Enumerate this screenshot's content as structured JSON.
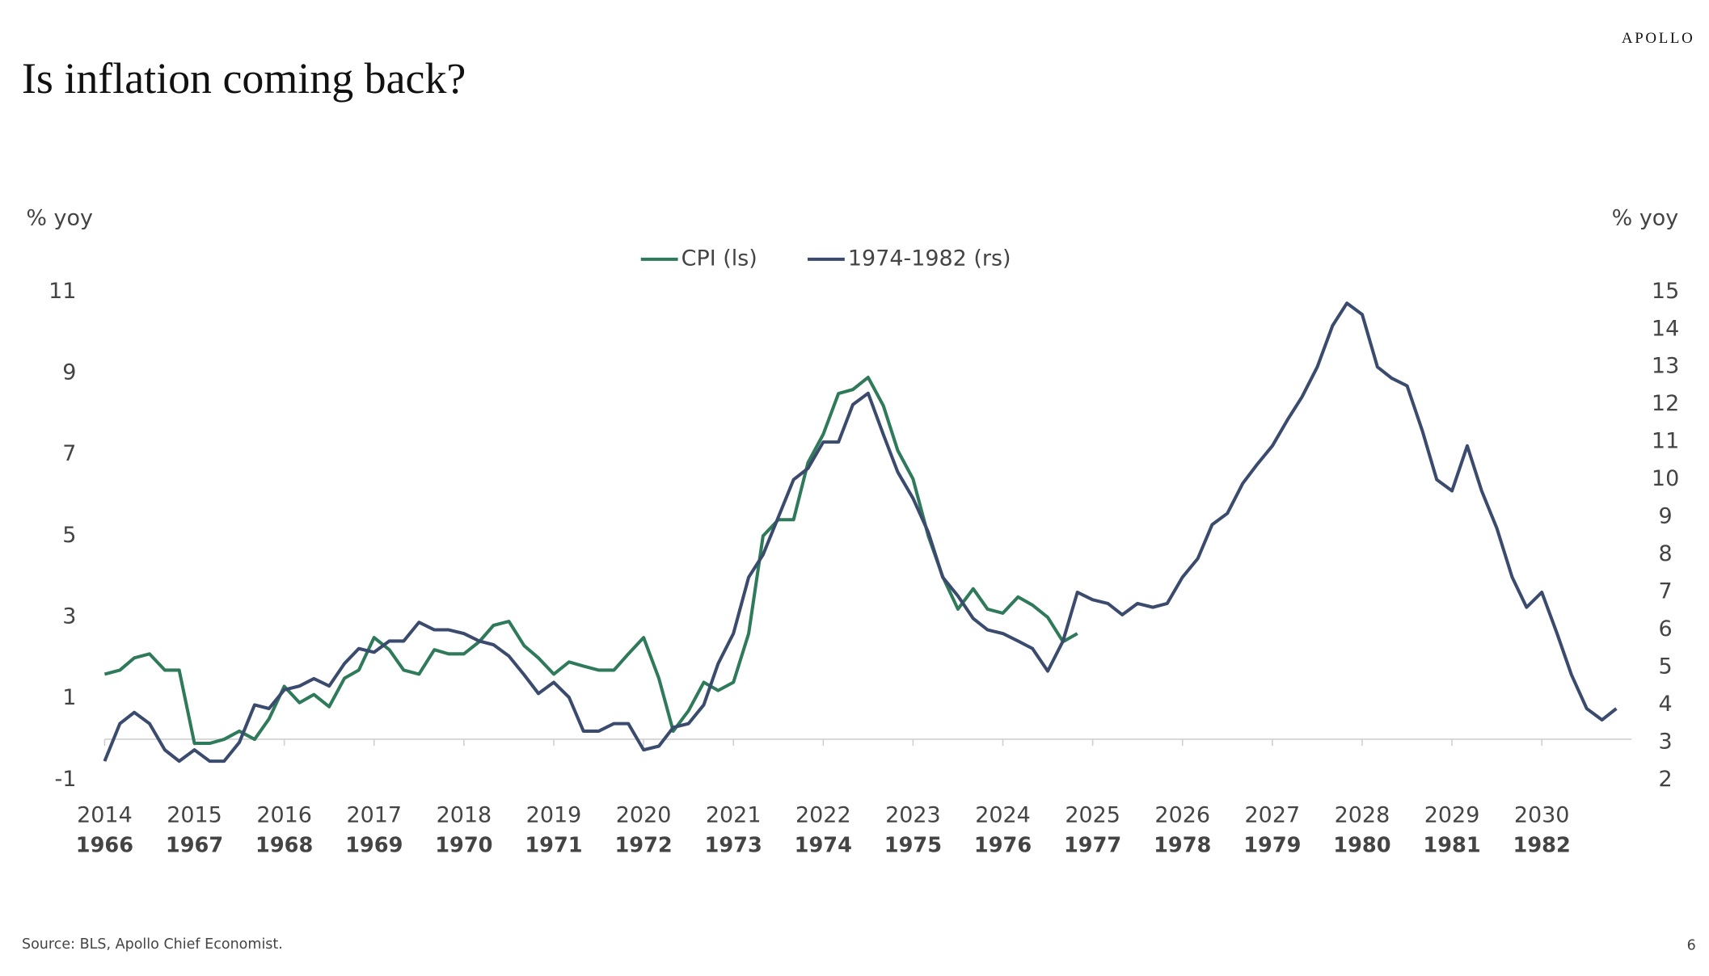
{
  "header": {
    "logo": "APOLLO"
  },
  "chart_data": {
    "type": "line",
    "title": "Is inflation coming back?",
    "y_label": "% yoy",
    "y2_label": "% yoy",
    "xlim": [
      2014,
      2031
    ],
    "xticks": [
      2014,
      2015,
      2016,
      2017,
      2018,
      2019,
      2020,
      2021,
      2022,
      2023,
      2024,
      2025,
      2026,
      2027,
      2028,
      2029,
      2030
    ],
    "x2ticks": [
      {
        "value": 2014,
        "label": "1966"
      },
      {
        "value": 2015,
        "label": "1967"
      },
      {
        "value": 2016,
        "label": "1968"
      },
      {
        "value": 2017,
        "label": "1969"
      },
      {
        "value": 2018,
        "label": "1970"
      },
      {
        "value": 2019,
        "label": "1971"
      },
      {
        "value": 2020,
        "label": "1972"
      },
      {
        "value": 2021,
        "label": "1973"
      },
      {
        "value": 2022,
        "label": "1974"
      },
      {
        "value": 2023,
        "label": "1975"
      },
      {
        "value": 2024,
        "label": "1976"
      },
      {
        "value": 2025,
        "label": "1977"
      },
      {
        "value": 2026,
        "label": "1978"
      },
      {
        "value": 2027,
        "label": "1979"
      },
      {
        "value": 2028,
        "label": "1980"
      },
      {
        "value": 2029,
        "label": "1981"
      },
      {
        "value": 2030,
        "label": "1982"
      }
    ],
    "ylim": [
      -1,
      11
    ],
    "yticks": [
      -1,
      1,
      3,
      5,
      7,
      9,
      11
    ],
    "y2lim": [
      2,
      15
    ],
    "y2ticks": [
      2,
      3,
      4,
      5,
      6,
      7,
      8,
      9,
      10,
      11,
      12,
      13,
      14,
      15
    ],
    "x": [
      2014,
      2014.17,
      2014.33,
      2014.5,
      2014.67,
      2014.83,
      2015,
      2015.17,
      2015.33,
      2015.5,
      2015.67,
      2015.83,
      2016,
      2016.17,
      2016.33,
      2016.5,
      2016.67,
      2016.83,
      2017,
      2017.17,
      2017.33,
      2017.5,
      2017.67,
      2017.83,
      2018,
      2018.17,
      2018.33,
      2018.5,
      2018.67,
      2018.83,
      2019,
      2019.17,
      2019.33,
      2019.5,
      2019.67,
      2019.83,
      2020,
      2020.17,
      2020.33,
      2020.5,
      2020.67,
      2020.83,
      2021,
      2021.17,
      2021.33,
      2021.5,
      2021.67,
      2021.83,
      2022,
      2022.17,
      2022.33,
      2022.5,
      2022.67,
      2022.83,
      2023,
      2023.17,
      2023.33,
      2023.5,
      2023.67,
      2023.83,
      2024,
      2024.17,
      2024.33,
      2024.5,
      2024.67,
      2024.83,
      2025,
      2025.17,
      2025.33,
      2025.5,
      2025.67,
      2025.83,
      2026,
      2026.17,
      2026.33,
      2026.5,
      2026.67,
      2026.83,
      2027,
      2027.17,
      2027.33,
      2027.5,
      2027.67,
      2027.83,
      2028,
      2028.17,
      2028.33,
      2028.5,
      2028.67,
      2028.83,
      2029,
      2029.17,
      2029.33,
      2029.5,
      2029.67,
      2029.83,
      2030,
      2030.17,
      2030.33,
      2030.5,
      2030.67,
      2030.83
    ],
    "series": [
      {
        "name": "CPI (ls)",
        "color": "#2e7a5a",
        "axis": "y",
        "values": [
          1.6,
          1.7,
          2.0,
          2.1,
          1.7,
          1.7,
          -0.1,
          -0.1,
          0.0,
          0.2,
          0.0,
          0.5,
          1.3,
          0.9,
          1.1,
          0.8,
          1.5,
          1.7,
          2.5,
          2.2,
          1.7,
          1.6,
          2.2,
          2.1,
          2.1,
          2.4,
          2.8,
          2.9,
          2.3,
          2.0,
          1.6,
          1.9,
          1.8,
          1.7,
          1.7,
          2.1,
          2.5,
          1.5,
          0.2,
          0.7,
          1.4,
          1.2,
          1.4,
          2.6,
          5.0,
          5.4,
          5.4,
          6.8,
          7.5,
          8.5,
          8.6,
          8.9,
          8.2,
          7.1,
          6.4,
          5.0,
          4.0,
          3.2,
          3.7,
          3.2,
          3.1,
          3.5,
          3.3,
          3.0,
          2.4,
          2.6,
          null,
          null,
          null,
          null,
          null,
          null,
          null,
          null,
          null,
          null,
          null,
          null,
          null,
          null,
          null,
          null,
          null,
          null,
          null,
          null,
          null,
          null,
          null,
          null,
          null,
          null,
          null,
          null,
          null,
          null,
          null,
          null,
          null,
          null,
          null,
          null
        ]
      },
      {
        "name": "1974-1982 (rs)",
        "color": "#3b4b6e",
        "axis": "y2",
        "values": [
          2.5,
          3.5,
          3.8,
          3.5,
          2.8,
          2.5,
          2.8,
          2.5,
          2.5,
          3.0,
          4.0,
          3.9,
          4.4,
          4.5,
          4.7,
          4.5,
          5.1,
          5.5,
          5.4,
          5.7,
          5.7,
          6.2,
          6.0,
          6.0,
          5.9,
          5.7,
          5.6,
          5.3,
          4.8,
          4.3,
          4.6,
          4.2,
          3.3,
          3.3,
          3.5,
          3.5,
          2.8,
          2.9,
          3.4,
          3.5,
          4.0,
          5.1,
          5.9,
          7.4,
          8.0,
          9.0,
          10.0,
          10.3,
          11.0,
          11.0,
          12.0,
          12.3,
          11.2,
          10.2,
          9.5,
          8.6,
          7.4,
          6.9,
          6.3,
          6.0,
          5.9,
          5.7,
          5.5,
          4.9,
          5.7,
          7.0,
          6.8,
          6.7,
          6.4,
          6.7,
          6.6,
          6.7,
          7.4,
          7.9,
          8.8,
          9.1,
          9.9,
          10.4,
          10.9,
          11.6,
          12.2,
          13.0,
          14.1,
          14.7,
          14.4,
          13.0,
          12.7,
          12.5,
          11.3,
          10.0,
          9.7,
          10.9,
          9.7,
          8.7,
          7.4,
          6.6,
          7.0,
          5.9,
          4.8,
          3.9,
          3.6,
          3.9
        ]
      }
    ]
  },
  "footer": {
    "source": "Source: BLS, Apollo Chief Economist.",
    "page": "6"
  }
}
